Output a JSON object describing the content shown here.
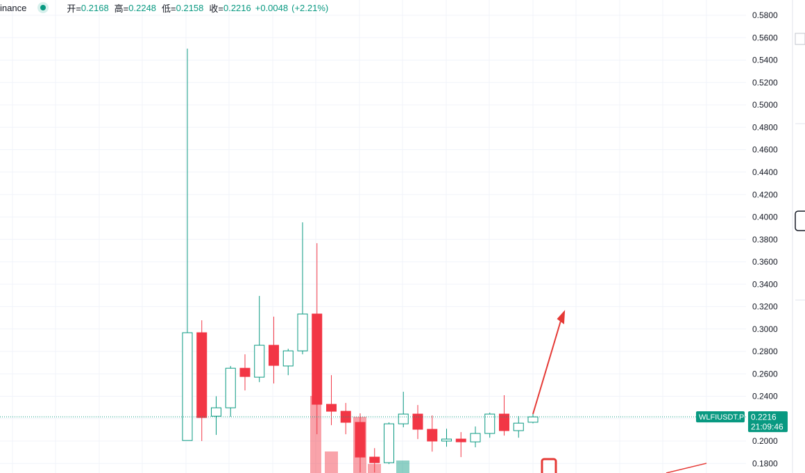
{
  "header": {
    "source": "inance",
    "open_label": "开=",
    "high_label": "高=",
    "low_label": "低=",
    "close_label": "收=",
    "change": "+0.0048",
    "change_pct": "(+2.21%)",
    "countdown": "21:09:46"
  },
  "chart_data": {
    "type": "candlestick",
    "series": [
      {
        "name": "WLFIUSDT.P",
        "up_color": "#089981",
        "down_color": "#f23645",
        "open": [
          0.2005,
          0.2967,
          0.2222,
          0.2297,
          0.265,
          0.257,
          0.2855,
          0.267,
          0.2805,
          0.3134,
          0.2328,
          0.2266,
          0.2167,
          0.1857,
          0.1807,
          0.2154,
          0.2241,
          0.2105,
          0.2,
          0.2018,
          0.1993,
          0.2068,
          0.2241,
          0.2093,
          0.2168
        ],
        "high": [
          0.5502,
          0.3078,
          0.24,
          0.267,
          0.2774,
          0.3295,
          0.311,
          0.2824,
          0.3952,
          0.3766,
          0.2588,
          0.234,
          0.2247,
          0.1937,
          0.2167,
          0.244,
          0.2322,
          0.2229,
          0.211,
          0.208,
          0.213,
          0.2254,
          0.2409,
          0.2223,
          0.2248
        ],
        "low": [
          0.2005,
          0.2,
          0.2055,
          0.2216,
          0.2452,
          0.2526,
          0.2514,
          0.2588,
          0.2774,
          0.2061,
          0.2142,
          0.2061,
          0.172,
          0.172,
          0.1795,
          0.2123,
          0.2018,
          0.1906,
          0.195,
          0.1857,
          0.1944,
          0.203,
          0.2049,
          0.203,
          0.2158
        ],
        "close": [
          0.2967,
          0.221,
          0.2297,
          0.265,
          0.2576,
          0.2855,
          0.2675,
          0.2805,
          0.3134,
          0.2328,
          0.2266,
          0.2167,
          0.1857,
          0.1807,
          0.2154,
          0.2241,
          0.2105,
          0.2,
          0.2018,
          0.1993,
          0.2068,
          0.2241,
          0.2093,
          0.216,
          0.2216
        ]
      }
    ],
    "ylim": [
      0.1715,
      0.5936
    ],
    "yticks": [
      {
        "value": 0.18,
        "label": "0.1800"
      },
      {
        "value": 0.2,
        "label": "0.2000"
      },
      {
        "value": 0.22,
        "label": "0.2200"
      },
      {
        "value": 0.24,
        "label": "0.2400"
      },
      {
        "value": 0.26,
        "label": "0.2600"
      },
      {
        "value": 0.28,
        "label": "0.2800"
      },
      {
        "value": 0.3,
        "label": "0.3000"
      },
      {
        "value": 0.32,
        "label": "0.3200"
      },
      {
        "value": 0.34,
        "label": "0.3400"
      },
      {
        "value": 0.36,
        "label": "0.3600"
      },
      {
        "value": 0.38,
        "label": "0.3800"
      },
      {
        "value": 0.4,
        "label": "0.4000"
      },
      {
        "value": 0.42,
        "label": "0.4200"
      },
      {
        "value": 0.44,
        "label": "0.4400"
      },
      {
        "value": 0.46,
        "label": "0.4600"
      },
      {
        "value": 0.48,
        "label": "0.4800"
      },
      {
        "value": 0.5,
        "label": "0.5000"
      },
      {
        "value": 0.52,
        "label": "0.5200"
      },
      {
        "value": 0.54,
        "label": "0.5400"
      },
      {
        "value": 0.56,
        "label": "0.5600"
      },
      {
        "value": 0.58,
        "label": "0.5800"
      }
    ],
    "grid": true
  }
}
